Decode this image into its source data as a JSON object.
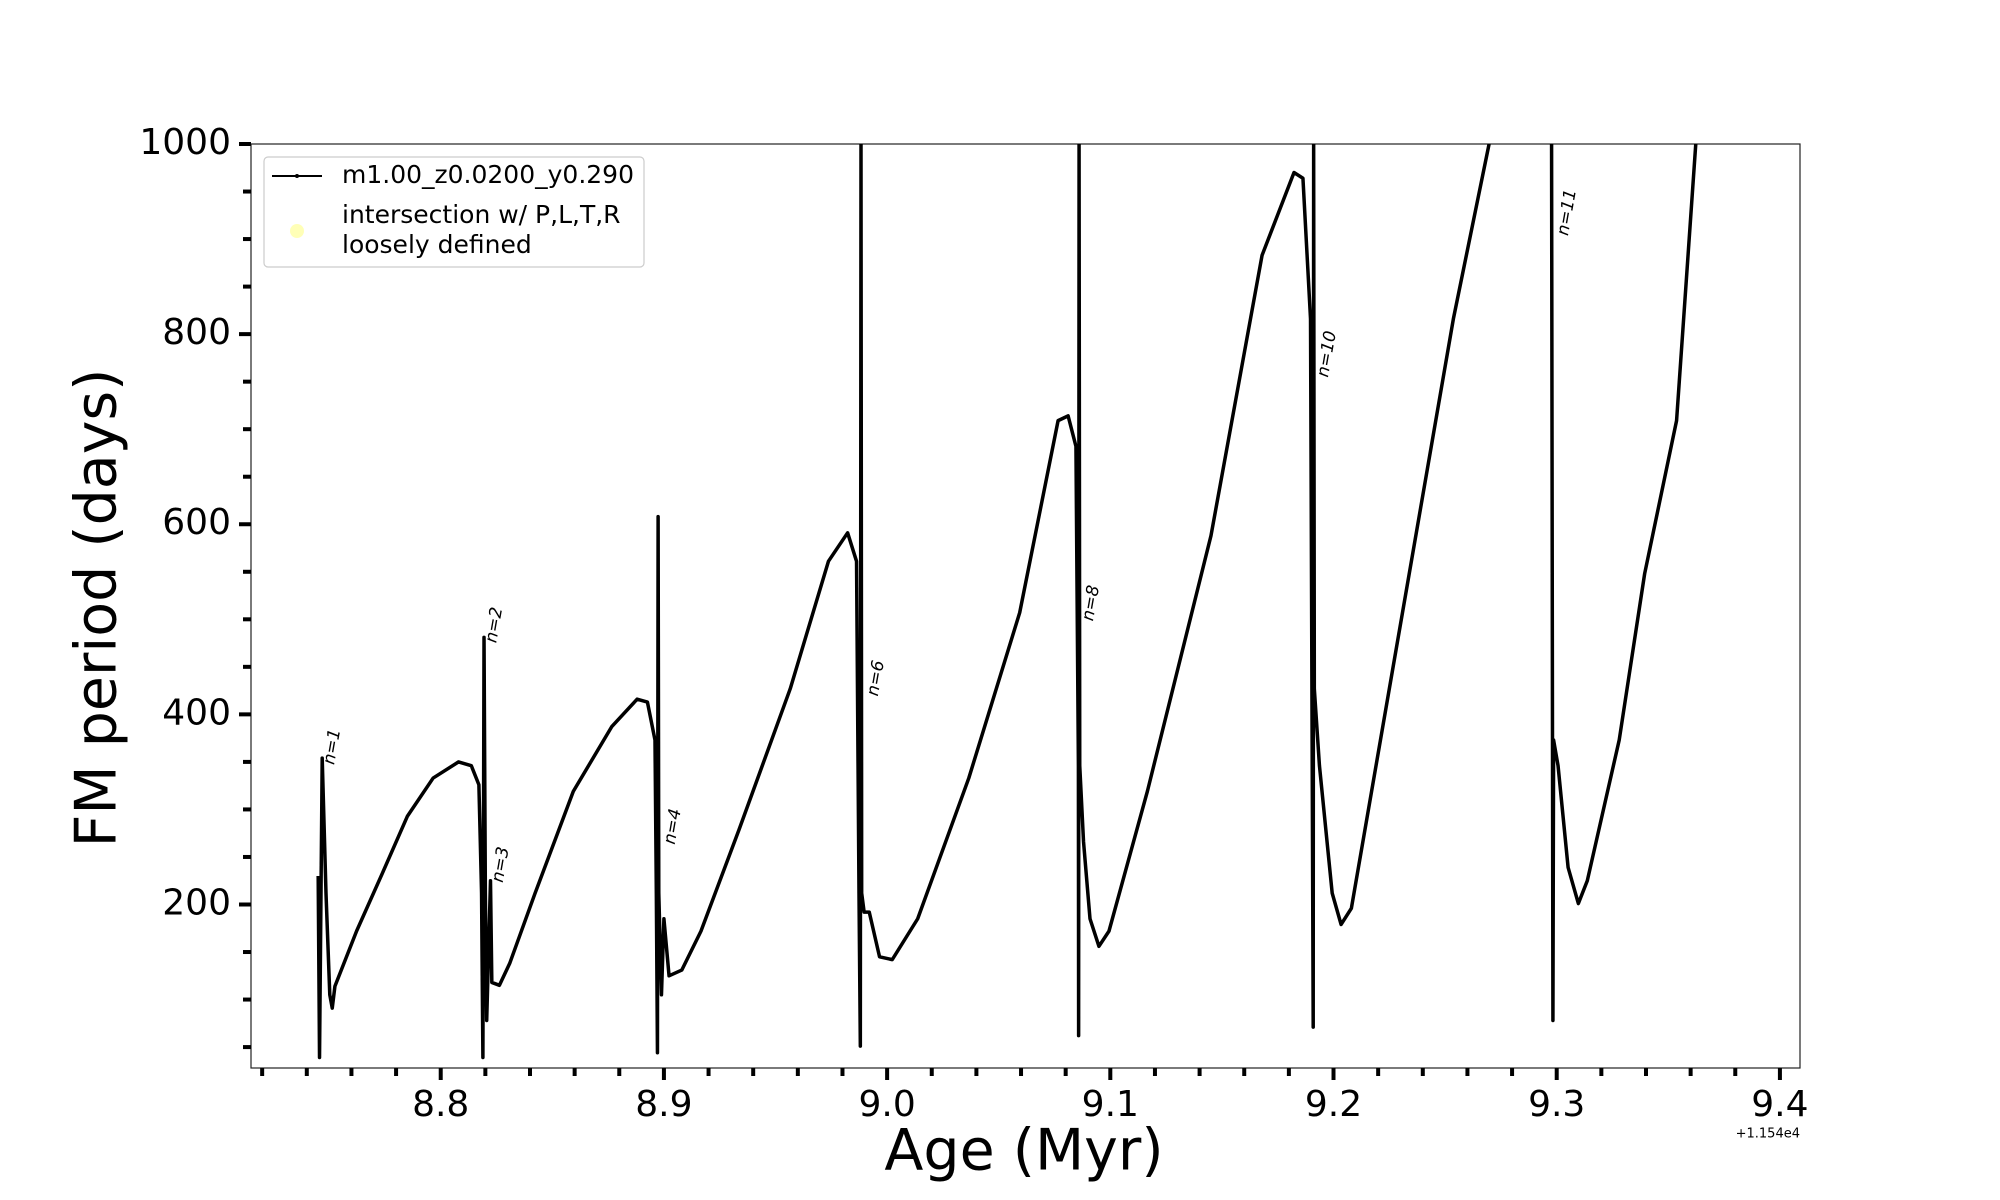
{
  "chart_data": {
    "type": "line",
    "xlabel": "Age (Myr)",
    "ylabel": "FM period (days)",
    "x_offset_label": "+1.154e4",
    "xlim": [
      8.715,
      9.409
    ],
    "ylim": [
      28,
      1000
    ],
    "xticks": [
      8.8,
      8.9,
      {
        "value": 9.0,
        "label": "9.0"
      },
      9.1,
      9.2,
      9.3,
      9.4
    ],
    "yticks": [
      200,
      400,
      600,
      800,
      1000
    ],
    "xminorticks": [
      8.72,
      8.74,
      8.76,
      8.78,
      8.82,
      8.84,
      8.86,
      8.88,
      8.92,
      8.94,
      8.96,
      8.98,
      9.02,
      9.04,
      9.06,
      9.08,
      9.12,
      9.14,
      9.16,
      9.18,
      9.22,
      9.24,
      9.26,
      9.28,
      9.32,
      9.34,
      9.36,
      9.38
    ],
    "yminorticks": [
      50,
      100,
      150,
      250,
      300,
      350,
      450,
      500,
      550,
      650,
      700,
      750,
      850,
      900,
      950
    ],
    "legend": "upper left",
    "series": [
      {
        "name": "m1.00_z0.0200_y0.290",
        "color": "#000000",
        "x": [
          8.7451,
          8.7457,
          8.7469,
          8.7486,
          8.7503,
          8.7514,
          8.7526,
          8.7623,
          8.7737,
          8.7851,
          8.7966,
          8.808,
          8.8137,
          8.8171,
          8.8183,
          8.8189,
          8.8194,
          8.82,
          8.8206,
          8.8223,
          8.8229,
          8.8263,
          8.8309,
          8.8423,
          8.8594,
          8.8766,
          8.888,
          8.8926,
          8.896,
          8.8966,
          8.8971,
          8.8974,
          8.8977,
          8.8989,
          8.9,
          8.9023,
          8.908,
          8.9166,
          8.9337,
          8.9566,
          8.9737,
          8.9823,
          8.9863,
          8.9874,
          8.988,
          8.9883,
          8.9886,
          8.9897,
          8.992,
          8.9966,
          9.0023,
          9.0137,
          9.0366,
          9.0594,
          9.0766,
          9.0811,
          9.0846,
          9.0857,
          9.0858,
          9.086,
          9.0863,
          9.088,
          9.0909,
          9.0949,
          9.0994,
          9.1166,
          9.1451,
          9.168,
          9.1823,
          9.1863,
          9.1897,
          9.1909,
          9.1911,
          9.1914,
          9.1937,
          9.1994,
          9.2034,
          9.208,
          9.2309,
          9.2537,
          9.2697,
          null,
          9.2977,
          9.2983,
          9.2986,
          9.3006,
          9.3051,
          9.3097,
          9.3137,
          9.328,
          9.3394,
          9.3537,
          9.3623
        ],
        "values": [
          230,
          39,
          354,
          212,
          105,
          91,
          114,
          172,
          232,
          293,
          333,
          350,
          346,
          326,
          212,
          39,
          481,
          212,
          78,
          225,
          118,
          115,
          138,
          212,
          319,
          387,
          416,
          413,
          373,
          212,
          44,
          608,
          212,
          105,
          185,
          125,
          131,
          172,
          279,
          427,
          561,
          591,
          561,
          212,
          51,
          1000,
          212,
          192,
          192,
          145,
          142,
          185,
          333,
          507,
          709,
          714,
          682,
          346,
          62,
          1000,
          346,
          266,
          185,
          156,
          172,
          319,
          588,
          883,
          970,
          964,
          816,
          71,
          1000,
          427,
          346,
          212,
          179,
          196,
          507,
          816,
          1000,
          null,
          1000,
          78,
          373,
          346,
          239,
          201,
          225,
          373,
          548,
          709,
          1000
        ]
      },
      {
        "name": "intersection w/ P,L,T,R\nloosely defined",
        "color": "#ffff99",
        "marker": "circle",
        "x": [],
        "values": []
      }
    ],
    "annotations": [
      {
        "text": "n=1",
        "x": 8.7514,
        "y": 366
      },
      {
        "text": "n=2",
        "x": 8.824,
        "y": 494
      },
      {
        "text": "n=3",
        "x": 8.8269,
        "y": 242
      },
      {
        "text": "n=4",
        "x": 8.904,
        "y": 282
      },
      {
        "text": "n=6",
        "x": 8.995,
        "y": 438
      },
      {
        "text": "n=8",
        "x": 9.0914,
        "y": 517
      },
      {
        "text": "n=10",
        "x": 9.1971,
        "y": 779
      },
      {
        "text": "n=11",
        "x": 9.3046,
        "y": 928
      }
    ]
  }
}
